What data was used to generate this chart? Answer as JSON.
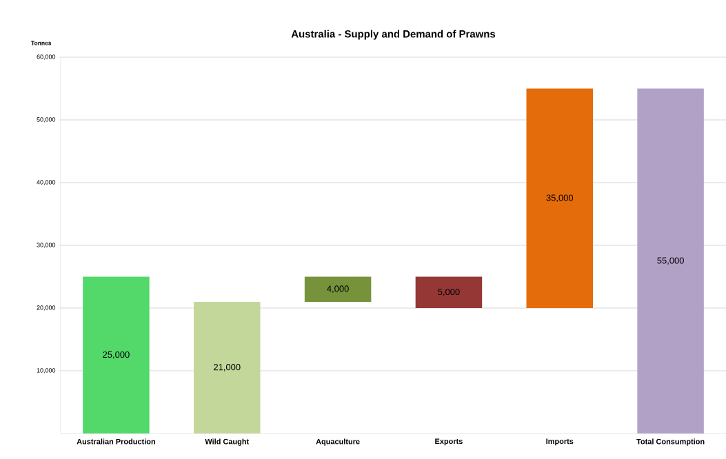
{
  "chart_data": {
    "type": "bar",
    "title": "Australia - Supply and Demand of Prawns",
    "ylabel": "Tonnes",
    "categories": [
      "Australian Production",
      "Wild Caught",
      "Aquaculture",
      "Exports",
      "Imports",
      "Total Consumption"
    ],
    "values": [
      25000,
      21000,
      4000,
      5000,
      35000,
      55000
    ],
    "base": [
      0,
      0,
      21000,
      20000,
      20000,
      0
    ],
    "colors": [
      "#52d96a",
      "#c4d79b",
      "#76933c",
      "#953735",
      "#e46c0a",
      "#b2a1c7"
    ],
    "value_labels": [
      "25,000",
      "21,000",
      "4,000",
      "5,000",
      "35,000",
      "55,000"
    ],
    "ylim": [
      0,
      60000
    ],
    "yticks": [
      {
        "value": 10000,
        "label": "10,000"
      },
      {
        "value": 20000,
        "label": "20,000"
      },
      {
        "value": 30000,
        "label": "30,000"
      },
      {
        "value": 40000,
        "label": "40,000"
      },
      {
        "value": 50000,
        "label": "50,000"
      },
      {
        "value": 60000,
        "label": "60,000"
      }
    ],
    "grid": "y"
  }
}
